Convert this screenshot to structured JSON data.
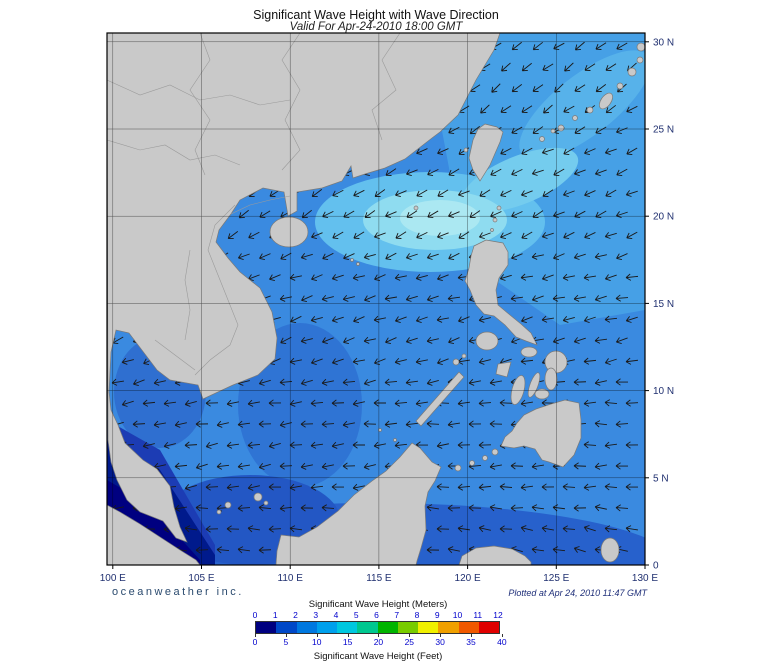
{
  "header": {
    "title": "Significant Wave Height with Wave Direction",
    "subtitle": "Valid For Apr-24-2010 18:00 GMT"
  },
  "footer": {
    "brand": "oceanweather inc.",
    "plotted": "Plotted at Apr 24, 2010 11:47 GMT"
  },
  "axes": {
    "lon_labels": [
      "100 E",
      "105 E",
      "110 E",
      "115 E",
      "120 E",
      "125 E",
      "130 E"
    ],
    "lat_labels": [
      "30 N",
      "25 N",
      "20 N",
      "15 N",
      "10 N",
      "5 N",
      "0"
    ]
  },
  "colorbar": {
    "meters_title": "Significant Wave Height (Meters)",
    "feet_title": "Significant Wave Height (Feet)",
    "meters_ticks": [
      0,
      1,
      2,
      3,
      4,
      5,
      6,
      7,
      8,
      9,
      10,
      11,
      12
    ],
    "feet_ticks": [
      0,
      5,
      10,
      15,
      20,
      25,
      30,
      35,
      40
    ],
    "colors": [
      "#000080",
      "#0048c8",
      "#0078e0",
      "#00a0ec",
      "#00c8e0",
      "#00c890",
      "#00b400",
      "#78cc00",
      "#f0f000",
      "#f0a000",
      "#f05800",
      "#e00000"
    ]
  },
  "map": {
    "sea_base": "#3a8ae0",
    "land_color": "#c9c9c9",
    "land_border": "#7a7a7a",
    "arrow_color": "#1a1a1a",
    "calm_color": "#000080"
  }
}
